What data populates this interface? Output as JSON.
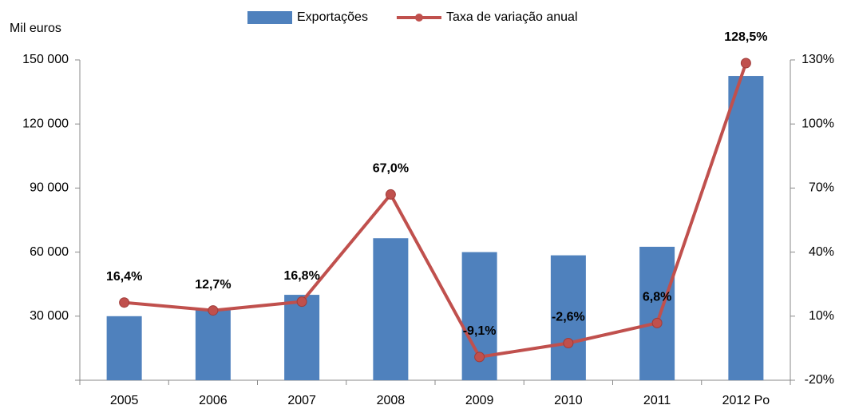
{
  "chart_data": {
    "type": "bar",
    "y_label": "Mil euros",
    "categories": [
      "2005",
      "2006",
      "2007",
      "2008",
      "2009",
      "2010",
      "2011",
      "2012 Po"
    ],
    "series": [
      {
        "name": "Exportações",
        "type": "bar",
        "color": "#4f81bd",
        "values": [
          30000,
          33000,
          40000,
          66500,
          60000,
          58500,
          62500,
          142500
        ]
      },
      {
        "name": "Taxa de variação anual",
        "type": "line",
        "axis": "y2",
        "color": "#c0504d",
        "values": [
          16.4,
          12.7,
          16.8,
          67.0,
          -9.1,
          -2.6,
          6.8,
          128.5
        ],
        "value_labels": [
          "16,4%",
          "12,7%",
          "16,8%",
          "67,0%",
          "-9,1%",
          "-2,6%",
          "6,8%",
          "128,5%"
        ]
      }
    ],
    "ylim": [
      0,
      150000
    ],
    "yticks": [
      {
        "value": 30000,
        "label": "30 000"
      },
      {
        "value": 60000,
        "label": "60 000"
      },
      {
        "value": 90000,
        "label": "90 000"
      },
      {
        "value": 120000,
        "label": "120 000"
      },
      {
        "value": 150000,
        "label": "150 000"
      }
    ],
    "y2lim": [
      -20,
      130
    ],
    "y2ticks": [
      {
        "value": -20,
        "label": "-20%"
      },
      {
        "value": 10,
        "label": "10%"
      },
      {
        "value": 40,
        "label": "40%"
      },
      {
        "value": 70,
        "label": "70%"
      },
      {
        "value": 100,
        "label": "100%"
      },
      {
        "value": 130,
        "label": "130%"
      }
    ],
    "legend": "top"
  }
}
